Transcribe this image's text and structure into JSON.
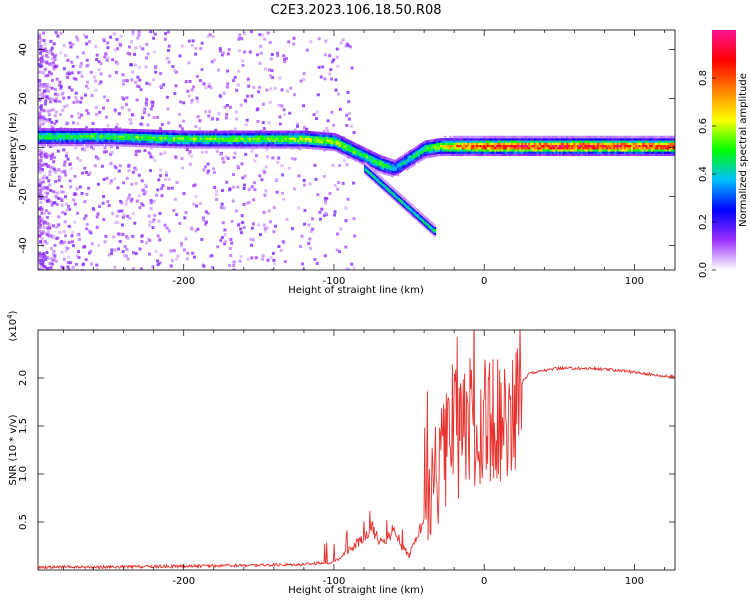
{
  "title": "C2E3.2023.106.18.50.R08",
  "chart_data": [
    {
      "type": "heatmap",
      "xlabel": "Height of straight line (km)",
      "ylabel": "Frequency (Hz)",
      "xlim": [
        -297,
        127
      ],
      "ylim": [
        -50,
        48
      ],
      "xticks": [
        -200,
        -100,
        0,
        100
      ],
      "xtick_labels": [
        "-200",
        "-100",
        "0",
        "100"
      ],
      "yticks": [
        -40,
        -20,
        0,
        20,
        40
      ],
      "ytick_labels": [
        "-40",
        "-20",
        "0",
        "20",
        "40"
      ],
      "colorbar": {
        "label": "Normalized spectral amplitude",
        "range": [
          0,
          1
        ],
        "ticks": [
          0.0,
          0.2,
          0.4,
          0.6,
          0.8
        ],
        "tick_labels": [
          "0.0",
          "0.2",
          "0.4",
          "0.6",
          "0.8"
        ],
        "colors": [
          "#ffffff",
          "#9b30ff",
          "#0000ff",
          "#00bfff",
          "#00ff00",
          "#ffff00",
          "#ff8000",
          "#ff0000",
          "#ff1493"
        ]
      },
      "ridge": {
        "x": [
          -297,
          -250,
          -200,
          -150,
          -120,
          -100,
          -90,
          -80,
          -70,
          -60,
          -50,
          -40,
          -30,
          -20,
          -10,
          0,
          20,
          50,
          80,
          100,
          127
        ],
        "y": [
          5,
          5,
          4,
          4,
          4,
          3,
          0,
          -3,
          -6,
          -8,
          -4,
          0,
          1,
          1,
          1,
          1,
          1,
          1,
          1,
          1,
          1
        ],
        "amplitude": [
          0.5,
          0.5,
          0.55,
          0.55,
          0.6,
          0.6,
          0.55,
          0.5,
          0.55,
          0.4,
          0.45,
          0.5,
          0.6,
          0.75,
          0.8,
          0.85,
          0.9,
          0.9,
          0.9,
          0.85,
          0.85
        ]
      }
    },
    {
      "type": "line",
      "xlabel": "Height of straight line (km)",
      "ylabel": "SNR (10 * v/v)",
      "y_multiplier": "(x10",
      "y_multiplier_exp": "4",
      "y_multiplier_close": ")",
      "xlim": [
        -297,
        127
      ],
      "ylim": [
        0,
        2.5
      ],
      "xticks": [
        -200,
        -100,
        0,
        100
      ],
      "xtick_labels": [
        "-200",
        "-100",
        "0",
        "100"
      ],
      "yticks": [
        0.5,
        1.0,
        1.5,
        2.0
      ],
      "ytick_labels": [
        "0.5",
        "1.0",
        "1.5",
        "2.0"
      ],
      "series": [
        {
          "color": "#e8302c",
          "x": [
            -297,
            -250,
            -200,
            -150,
            -120,
            -100,
            -90,
            -80,
            -75,
            -70,
            -65,
            -60,
            -55,
            -50,
            -45,
            -40,
            -35,
            -30,
            -25,
            -20,
            -15,
            -10,
            -5,
            0,
            5,
            10,
            15,
            20,
            25,
            30,
            40,
            50,
            60,
            70,
            80,
            90,
            100,
            110,
            120,
            127
          ],
          "y": [
            0.03,
            0.03,
            0.04,
            0.05,
            0.06,
            0.08,
            0.2,
            0.35,
            0.45,
            0.3,
            0.3,
            0.45,
            0.25,
            0.15,
            0.35,
            0.5,
            0.9,
            1.1,
            1.3,
            1.5,
            1.4,
            1.5,
            1.45,
            1.5,
            1.55,
            1.6,
            1.5,
            1.7,
            1.95,
            2.05,
            2.08,
            2.1,
            2.1,
            2.1,
            2.09,
            2.08,
            2.06,
            2.04,
            2.02,
            2.01
          ]
        }
      ]
    }
  ]
}
